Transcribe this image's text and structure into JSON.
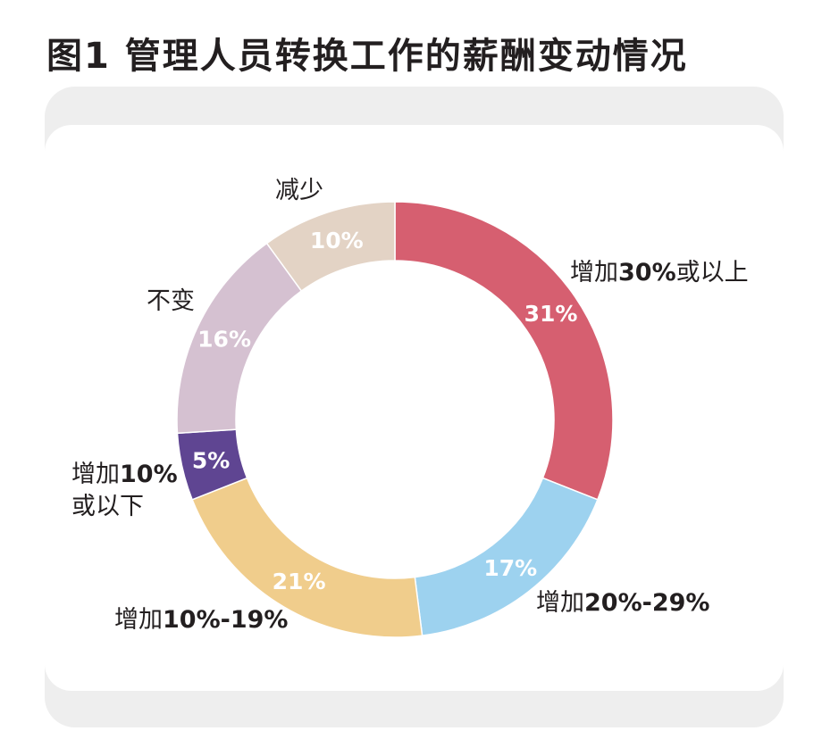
{
  "chart_data": {
    "type": "pie",
    "title": "图1 管理人员转换工作的薪酬变动情况",
    "unit": "%",
    "slices": [
      {
        "category": "增加30%或以上",
        "value": 31,
        "label": "31%",
        "color": "#d65f70"
      },
      {
        "category": "增加20%-29%",
        "value": 17,
        "label": "17%",
        "color": "#9dd2ef"
      },
      {
        "category": "增加10%-19%",
        "value": 21,
        "label": "21%",
        "color": "#f0cd8c"
      },
      {
        "category": "增加10%或以下",
        "value": 5,
        "label": "5%",
        "color": "#5f4592"
      },
      {
        "category": "不变",
        "value": 16,
        "label": "16%",
        "color": "#d5c1d1"
      },
      {
        "category": "减少",
        "value": 10,
        "label": "10%",
        "color": "#e3d3c5"
      }
    ],
    "legend_labels": {
      "s30": {
        "pre": "增加",
        "num": "30%",
        "post": "或以上"
      },
      "s20": {
        "pre": "增加",
        "num": "20%-29%"
      },
      "s10": {
        "pre": "增加",
        "num": "10%-19%"
      },
      "s5a": {
        "pre": "增加",
        "num": "10%"
      },
      "s5b": {
        "post": "或以下"
      },
      "same": {
        "post": "不变"
      },
      "down": {
        "post": "减少"
      }
    }
  }
}
